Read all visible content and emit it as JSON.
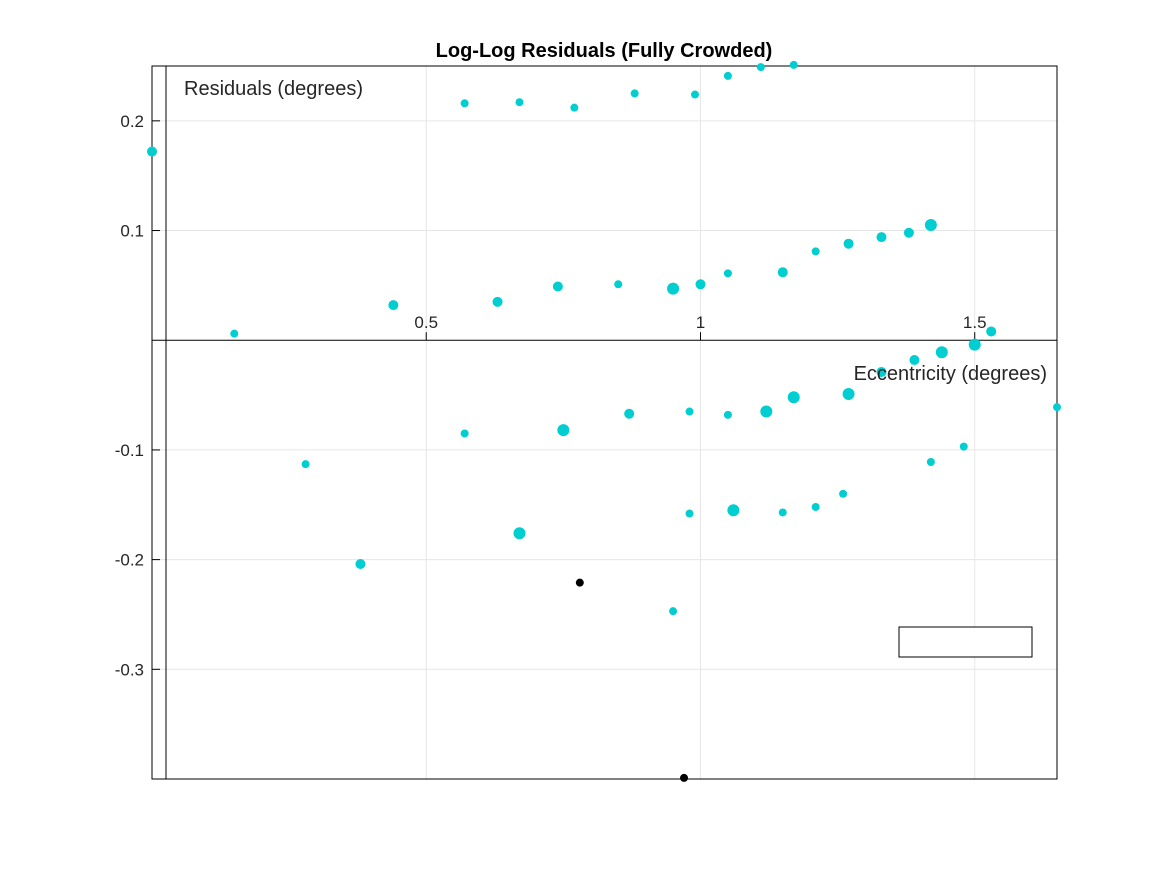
{
  "chart_data": {
    "type": "scatter",
    "title": "Log-Log Residuals (Fully Crowded)",
    "xlabel": "Eccentricity (degrees)",
    "ylabel": "Residuals (degrees)",
    "xlim": [
      0.0,
      1.65
    ],
    "ylim": [
      -0.4,
      0.25
    ],
    "xticks": [
      0.5,
      1,
      1.5
    ],
    "xtick_labels": [
      "0.5",
      "1",
      "1.5"
    ],
    "yticks": [
      -0.3,
      -0.2,
      -0.1,
      0.1,
      0.2
    ],
    "ytick_labels": [
      "-0.3",
      "-0.2",
      "-0.1",
      "0.1",
      "0.2"
    ],
    "grid": true,
    "axis_location": "origin",
    "colors": {
      "points": "#00CED1",
      "highlight": "#000000",
      "grid": "#e6e6e6",
      "axes": "#000000"
    },
    "series": [
      {
        "color": "#00CED1",
        "points": [
          {
            "x": 0.0,
            "y": 0.172,
            "s": 5
          },
          {
            "x": 0.15,
            "y": 0.006,
            "s": 4
          },
          {
            "x": 0.28,
            "y": -0.113,
            "s": 4
          },
          {
            "x": 0.38,
            "y": -0.204,
            "s": 5
          },
          {
            "x": 0.44,
            "y": 0.032,
            "s": 5
          },
          {
            "x": 0.57,
            "y": 0.216,
            "s": 4
          },
          {
            "x": 0.57,
            "y": -0.085,
            "s": 4
          },
          {
            "x": 0.63,
            "y": 0.035,
            "s": 5
          },
          {
            "x": 0.67,
            "y": 0.217,
            "s": 4
          },
          {
            "x": 0.67,
            "y": -0.176,
            "s": 6
          },
          {
            "x": 0.74,
            "y": 0.049,
            "s": 5
          },
          {
            "x": 0.75,
            "y": -0.082,
            "s": 6
          },
          {
            "x": 0.77,
            "y": 0.212,
            "s": 4
          },
          {
            "x": 0.85,
            "y": 0.051,
            "s": 4
          },
          {
            "x": 0.87,
            "y": -0.067,
            "s": 5
          },
          {
            "x": 0.88,
            "y": 0.225,
            "s": 4
          },
          {
            "x": 0.95,
            "y": 0.047,
            "s": 6
          },
          {
            "x": 0.95,
            "y": -0.247,
            "s": 4
          },
          {
            "x": 0.98,
            "y": -0.065,
            "s": 4
          },
          {
            "x": 0.98,
            "y": -0.158,
            "s": 4
          },
          {
            "x": 0.99,
            "y": 0.224,
            "s": 4
          },
          {
            "x": 1.0,
            "y": 0.051,
            "s": 5
          },
          {
            "x": 1.05,
            "y": 0.061,
            "s": 4
          },
          {
            "x": 1.05,
            "y": 0.241,
            "s": 4
          },
          {
            "x": 1.05,
            "y": -0.068,
            "s": 4
          },
          {
            "x": 1.06,
            "y": -0.155,
            "s": 6
          },
          {
            "x": 1.11,
            "y": 0.249,
            "s": 4
          },
          {
            "x": 1.12,
            "y": -0.065,
            "s": 6
          },
          {
            "x": 1.15,
            "y": 0.062,
            "s": 5
          },
          {
            "x": 1.15,
            "y": -0.157,
            "s": 4
          },
          {
            "x": 1.17,
            "y": 0.251,
            "s": 4
          },
          {
            "x": 1.17,
            "y": -0.052,
            "s": 6
          },
          {
            "x": 1.21,
            "y": 0.081,
            "s": 4
          },
          {
            "x": 1.21,
            "y": -0.152,
            "s": 4
          },
          {
            "x": 1.26,
            "y": -0.14,
            "s": 4
          },
          {
            "x": 1.27,
            "y": 0.088,
            "s": 5
          },
          {
            "x": 1.27,
            "y": -0.049,
            "s": 6
          },
          {
            "x": 1.33,
            "y": 0.094,
            "s": 5
          },
          {
            "x": 1.33,
            "y": -0.029,
            "s": 5
          },
          {
            "x": 1.38,
            "y": 0.098,
            "s": 5
          },
          {
            "x": 1.39,
            "y": -0.018,
            "s": 5
          },
          {
            "x": 1.42,
            "y": 0.105,
            "s": 6
          },
          {
            "x": 1.42,
            "y": -0.111,
            "s": 4
          },
          {
            "x": 1.44,
            "y": -0.011,
            "s": 6
          },
          {
            "x": 1.48,
            "y": -0.097,
            "s": 4
          },
          {
            "x": 1.5,
            "y": -0.004,
            "s": 6
          },
          {
            "x": 1.53,
            "y": 0.008,
            "s": 5
          },
          {
            "x": 1.65,
            "y": -0.061,
            "s": 4
          }
        ]
      },
      {
        "color": "#000000",
        "points": [
          {
            "x": 0.78,
            "y": -0.221,
            "s": 4
          },
          {
            "x": 0.97,
            "y": -0.399,
            "s": 4
          }
        ]
      }
    ],
    "legend": {
      "placement": "bottom-right",
      "entries": []
    }
  }
}
